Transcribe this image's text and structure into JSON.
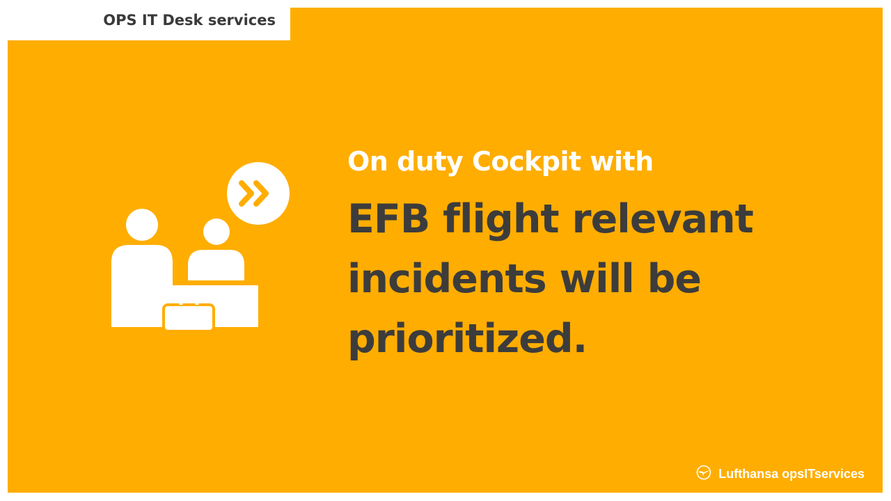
{
  "header": {
    "title": "OPS IT Desk services"
  },
  "content": {
    "subheading": "On duty Cockpit with",
    "main_message": "EFB flight relevant incidents will be prioritized."
  },
  "footer": {
    "logo_text": "Lufthansa opsITservices"
  },
  "icons": {
    "illustration": "service-desk-icon",
    "logo": "crane-logo-icon"
  },
  "colors": {
    "background": "#FFAD00",
    "heading_text": "#ffffff",
    "body_text": "#3c3c3c",
    "header_text": "#3a3a3a"
  }
}
